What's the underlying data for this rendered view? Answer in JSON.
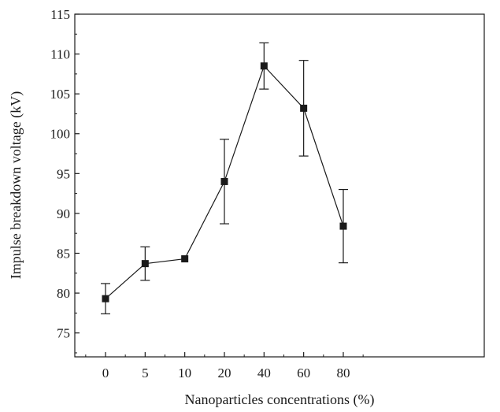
{
  "chart_data": {
    "type": "line",
    "title": "",
    "xlabel": "Nanoparticles concentrations (%)",
    "ylabel": "Impulse breakdown voltage (kV)",
    "categories": [
      "0",
      "5",
      "10",
      "20",
      "40",
      "60",
      "80"
    ],
    "ylim": [
      72,
      115
    ],
    "yticks": [
      75,
      80,
      85,
      90,
      95,
      100,
      105,
      110,
      115
    ],
    "grid": false,
    "legend": "none",
    "marker": "square",
    "series": [
      {
        "values": [
          79.3,
          83.7,
          84.3,
          94.0,
          108.5,
          103.2,
          88.4
        ],
        "error_low": [
          77.4,
          81.6,
          84.3,
          88.7,
          105.6,
          97.2,
          83.8
        ],
        "error_high": [
          81.2,
          85.8,
          84.3,
          99.3,
          111.4,
          109.2,
          93.0
        ]
      }
    ],
    "colors": {
      "line": "#1a1a1a",
      "marker": "#1a1a1a"
    }
  }
}
